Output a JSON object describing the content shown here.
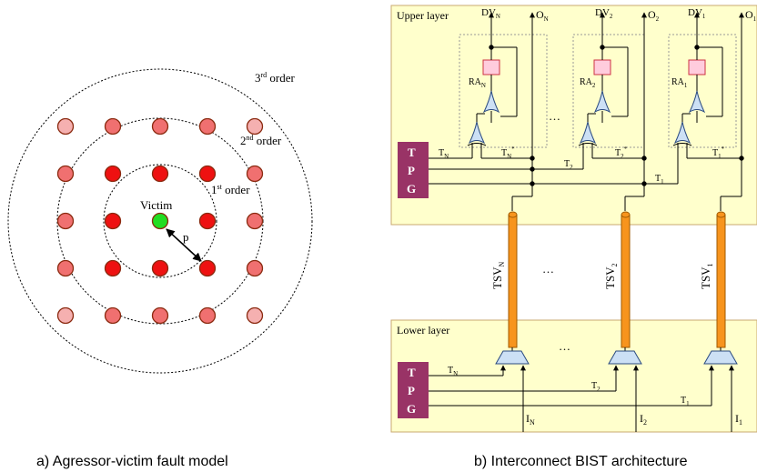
{
  "left_panel": {
    "caption": "a) Agressor-victim fault  model",
    "victim_label": "Victim",
    "pitch_label": "p",
    "order_labels": [
      {
        "base": "1",
        "sup": "st",
        "word": " order"
      },
      {
        "base": "2",
        "sup": "nd",
        "word": " order"
      },
      {
        "base": "3",
        "sup": "rd",
        "word": " order"
      }
    ],
    "colors": {
      "victim": "#22dd22",
      "first_order": "#ee1111",
      "second_order": "#f07070",
      "third_order": "#f5b0b0",
      "node_border": "#8b2a10"
    }
  },
  "right_panel": {
    "caption": "b) Interconnect BIST architecture",
    "upper_layer_label": "Upper layer",
    "lower_layer_label": "Lower layer",
    "tpg_letters": [
      "T",
      "P",
      "G"
    ],
    "ellipsis": "…",
    "columns": [
      {
        "dv_base": "DV",
        "dv_sub": "N",
        "o_base": "O",
        "o_sub": "N",
        "ra_base": "RA",
        "ra_sub": "N",
        "tstar_base": "T",
        "tstar_sub": "N",
        "tstar_sup": "*",
        "tsv_base": "TSV",
        "tsv_sub": "N",
        "i_base": "I",
        "i_sub": "N",
        "t_base": "T",
        "t_sub": "N"
      },
      {
        "dv_base": "DV",
        "dv_sub": "2",
        "o_base": "O",
        "o_sub": "2",
        "ra_base": "RA",
        "ra_sub": "2",
        "tstar_base": "T",
        "tstar_sub": "2",
        "tstar_sup": "*",
        "tsv_base": "TSV",
        "tsv_sub": "2",
        "i_base": "I",
        "i_sub": "2",
        "t_base": "T",
        "t_sub": "2"
      },
      {
        "dv_base": "DV",
        "dv_sub": "1",
        "o_base": "O",
        "o_sub": "1",
        "ra_base": "RA",
        "ra_sub": "1",
        "tstar_base": "T",
        "tstar_sub": "1",
        "tstar_sup": "*",
        "tsv_base": "TSV",
        "tsv_sub": "1",
        "i_base": "I",
        "i_sub": "1",
        "t_base": "T",
        "t_sub": "1"
      }
    ],
    "colors": {
      "layer_fill": "#ffffcc",
      "layer_border": "#c8a870",
      "tpg_fill": "#993366",
      "ra_fill": "#ffccdd",
      "ra_border": "#cc3344",
      "gate_fill": "#cce0f5",
      "gate_border": "#2a4a80",
      "tsv_fill": "#f7941d",
      "tsv_border": "#a05a00"
    }
  }
}
